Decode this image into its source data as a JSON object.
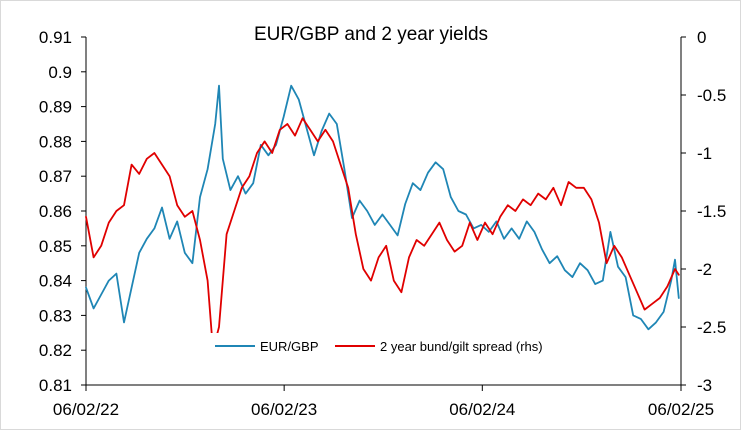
{
  "chart_data": {
    "type": "line",
    "title": "EUR/GBP and 2 year yields",
    "xlabel": "",
    "ylabel": "",
    "x_ticks": [
      "06/02/22",
      "06/02/23",
      "06/02/24",
      "06/02/25"
    ],
    "x_range": [
      "06/02/22",
      "06/02/25"
    ],
    "y_left": {
      "ylim": [
        0.81,
        0.91
      ],
      "ticks": [
        "0.81",
        "0.82",
        "0.83",
        "0.84",
        "0.85",
        "0.86",
        "0.87",
        "0.88",
        "0.89",
        "0.9",
        "0.91"
      ]
    },
    "y_right": {
      "ylim": [
        -3,
        0
      ],
      "ticks": [
        "-3",
        "-2.5",
        "-2",
        "-1.5",
        "-1",
        "-0.5",
        "0"
      ]
    },
    "grid": false,
    "legend_position": "bottom-center",
    "series": [
      {
        "name": "EUR/GBP",
        "axis": "left",
        "color": "#1f86b5",
        "points": [
          [
            "2022-02-06",
            0.838
          ],
          [
            "2022-02-20",
            0.832
          ],
          [
            "2022-03-06",
            0.836
          ],
          [
            "2022-03-20",
            0.84
          ],
          [
            "2022-04-03",
            0.842
          ],
          [
            "2022-04-17",
            0.828
          ],
          [
            "2022-05-01",
            0.838
          ],
          [
            "2022-05-15",
            0.848
          ],
          [
            "2022-05-29",
            0.852
          ],
          [
            "2022-06-12",
            0.855
          ],
          [
            "2022-06-26",
            0.861
          ],
          [
            "2022-07-10",
            0.852
          ],
          [
            "2022-07-24",
            0.857
          ],
          [
            "2022-08-07",
            0.848
          ],
          [
            "2022-08-21",
            0.845
          ],
          [
            "2022-09-04",
            0.864
          ],
          [
            "2022-09-18",
            0.872
          ],
          [
            "2022-10-02",
            0.885
          ],
          [
            "2022-10-09",
            0.896
          ],
          [
            "2022-10-16",
            0.875
          ],
          [
            "2022-10-30",
            0.866
          ],
          [
            "2022-11-13",
            0.87
          ],
          [
            "2022-11-27",
            0.865
          ],
          [
            "2022-12-11",
            0.868
          ],
          [
            "2022-12-25",
            0.879
          ],
          [
            "2023-01-08",
            0.876
          ],
          [
            "2023-01-22",
            0.879
          ],
          [
            "2023-02-05",
            0.887
          ],
          [
            "2023-02-19",
            0.896
          ],
          [
            "2023-03-05",
            0.892
          ],
          [
            "2023-03-19",
            0.884
          ],
          [
            "2023-04-02",
            0.876
          ],
          [
            "2023-04-16",
            0.883
          ],
          [
            "2023-04-30",
            0.888
          ],
          [
            "2023-05-14",
            0.885
          ],
          [
            "2023-05-28",
            0.872
          ],
          [
            "2023-06-11",
            0.858
          ],
          [
            "2023-06-25",
            0.863
          ],
          [
            "2023-07-09",
            0.86
          ],
          [
            "2023-07-23",
            0.856
          ],
          [
            "2023-08-06",
            0.859
          ],
          [
            "2023-08-20",
            0.856
          ],
          [
            "2023-09-03",
            0.853
          ],
          [
            "2023-09-17",
            0.862
          ],
          [
            "2023-10-01",
            0.868
          ],
          [
            "2023-10-15",
            0.866
          ],
          [
            "2023-10-29",
            0.871
          ],
          [
            "2023-11-12",
            0.874
          ],
          [
            "2023-11-26",
            0.872
          ],
          [
            "2023-12-10",
            0.864
          ],
          [
            "2023-12-24",
            0.86
          ],
          [
            "2024-01-07",
            0.859
          ],
          [
            "2024-01-21",
            0.855
          ],
          [
            "2024-02-04",
            0.856
          ],
          [
            "2024-02-18",
            0.854
          ],
          [
            "2024-03-03",
            0.857
          ],
          [
            "2024-03-17",
            0.852
          ],
          [
            "2024-03-31",
            0.855
          ],
          [
            "2024-04-14",
            0.852
          ],
          [
            "2024-04-28",
            0.857
          ],
          [
            "2024-05-12",
            0.854
          ],
          [
            "2024-05-26",
            0.849
          ],
          [
            "2024-06-09",
            0.845
          ],
          [
            "2024-06-23",
            0.847
          ],
          [
            "2024-07-07",
            0.843
          ],
          [
            "2024-07-21",
            0.841
          ],
          [
            "2024-08-04",
            0.845
          ],
          [
            "2024-08-18",
            0.843
          ],
          [
            "2024-09-01",
            0.839
          ],
          [
            "2024-09-15",
            0.84
          ],
          [
            "2024-09-29",
            0.854
          ],
          [
            "2024-10-13",
            0.844
          ],
          [
            "2024-10-27",
            0.841
          ],
          [
            "2024-11-10",
            0.83
          ],
          [
            "2024-11-24",
            0.829
          ],
          [
            "2024-12-08",
            0.826
          ],
          [
            "2024-12-22",
            0.828
          ],
          [
            "2025-01-05",
            0.831
          ],
          [
            "2025-01-19",
            0.84
          ],
          [
            "2025-01-26",
            0.846
          ],
          [
            "2025-02-02",
            0.835
          ]
        ]
      },
      {
        "name": "2 year bund/gilt spread (rhs)",
        "axis": "right",
        "color": "#e00000",
        "points": [
          [
            "2022-02-06",
            -1.55
          ],
          [
            "2022-02-20",
            -1.9
          ],
          [
            "2022-03-06",
            -1.8
          ],
          [
            "2022-03-20",
            -1.6
          ],
          [
            "2022-04-03",
            -1.5
          ],
          [
            "2022-04-17",
            -1.45
          ],
          [
            "2022-05-01",
            -1.1
          ],
          [
            "2022-05-15",
            -1.18
          ],
          [
            "2022-05-29",
            -1.05
          ],
          [
            "2022-06-12",
            -1.0
          ],
          [
            "2022-06-26",
            -1.1
          ],
          [
            "2022-07-10",
            -1.2
          ],
          [
            "2022-07-24",
            -1.45
          ],
          [
            "2022-08-07",
            -1.55
          ],
          [
            "2022-08-21",
            -1.5
          ],
          [
            "2022-09-04",
            -1.75
          ],
          [
            "2022-09-18",
            -2.1
          ],
          [
            "2022-09-28",
            -2.7
          ],
          [
            "2022-10-09",
            -2.5
          ],
          [
            "2022-10-23",
            -1.7
          ],
          [
            "2022-11-06",
            -1.5
          ],
          [
            "2022-11-20",
            -1.3
          ],
          [
            "2022-12-04",
            -1.2
          ],
          [
            "2022-12-18",
            -1.0
          ],
          [
            "2023-01-01",
            -0.9
          ],
          [
            "2023-01-15",
            -1.0
          ],
          [
            "2023-01-29",
            -0.8
          ],
          [
            "2023-02-12",
            -0.75
          ],
          [
            "2023-02-26",
            -0.85
          ],
          [
            "2023-03-12",
            -0.7
          ],
          [
            "2023-03-26",
            -0.8
          ],
          [
            "2023-04-09",
            -0.9
          ],
          [
            "2023-04-23",
            -0.8
          ],
          [
            "2023-05-07",
            -0.9
          ],
          [
            "2023-05-21",
            -1.1
          ],
          [
            "2023-06-04",
            -1.3
          ],
          [
            "2023-06-18",
            -1.7
          ],
          [
            "2023-07-02",
            -2.0
          ],
          [
            "2023-07-16",
            -2.1
          ],
          [
            "2023-07-30",
            -1.9
          ],
          [
            "2023-08-13",
            -1.8
          ],
          [
            "2023-08-27",
            -2.1
          ],
          [
            "2023-09-10",
            -2.2
          ],
          [
            "2023-09-24",
            -1.9
          ],
          [
            "2023-10-08",
            -1.75
          ],
          [
            "2023-10-22",
            -1.8
          ],
          [
            "2023-11-05",
            -1.7
          ],
          [
            "2023-11-19",
            -1.6
          ],
          [
            "2023-12-03",
            -1.75
          ],
          [
            "2023-12-17",
            -1.85
          ],
          [
            "2023-12-31",
            -1.8
          ],
          [
            "2024-01-14",
            -1.6
          ],
          [
            "2024-01-28",
            -1.75
          ],
          [
            "2024-02-11",
            -1.6
          ],
          [
            "2024-02-25",
            -1.7
          ],
          [
            "2024-03-10",
            -1.55
          ],
          [
            "2024-03-24",
            -1.45
          ],
          [
            "2024-04-07",
            -1.5
          ],
          [
            "2024-04-21",
            -1.4
          ],
          [
            "2024-05-05",
            -1.45
          ],
          [
            "2024-05-19",
            -1.35
          ],
          [
            "2024-06-02",
            -1.4
          ],
          [
            "2024-06-16",
            -1.3
          ],
          [
            "2024-06-30",
            -1.45
          ],
          [
            "2024-07-14",
            -1.25
          ],
          [
            "2024-07-28",
            -1.3
          ],
          [
            "2024-08-11",
            -1.3
          ],
          [
            "2024-08-25",
            -1.4
          ],
          [
            "2024-09-08",
            -1.6
          ],
          [
            "2024-09-22",
            -1.95
          ],
          [
            "2024-10-06",
            -1.8
          ],
          [
            "2024-10-20",
            -1.9
          ],
          [
            "2024-11-03",
            -2.05
          ],
          [
            "2024-11-17",
            -2.2
          ],
          [
            "2024-12-01",
            -2.35
          ],
          [
            "2024-12-15",
            -2.3
          ],
          [
            "2024-12-29",
            -2.25
          ],
          [
            "2025-01-12",
            -2.15
          ],
          [
            "2025-01-26",
            -2.0
          ],
          [
            "2025-02-02",
            -2.05
          ]
        ]
      }
    ]
  }
}
